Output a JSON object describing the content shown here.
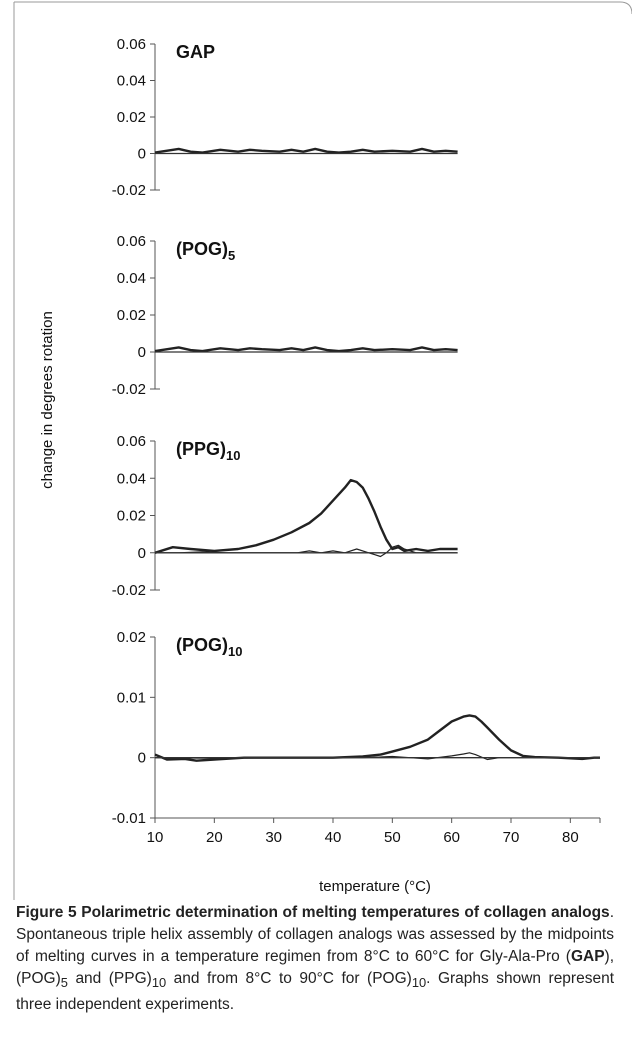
{
  "chart_data": [
    {
      "type": "line",
      "title": "GAP",
      "xlim": [
        10,
        85
      ],
      "ylim": [
        -0.02,
        0.06
      ],
      "yticks": [
        "0.06",
        "0.04",
        "0.02",
        "0",
        "-0.02"
      ],
      "series": [
        {
          "x": [
            10,
            14,
            16,
            18,
            21,
            24,
            26,
            28,
            31,
            33,
            35,
            37,
            39,
            41,
            43,
            45,
            47,
            50,
            53,
            55,
            57,
            59,
            61
          ],
          "y": [
            0.0005,
            0.0025,
            0.001,
            0.0005,
            0.002,
            0.001,
            0.002,
            0.0015,
            0.001,
            0.002,
            0.001,
            0.0025,
            0.001,
            0.0005,
            0.001,
            0.002,
            0.001,
            0.0015,
            0.001,
            0.0025,
            0.001,
            0.0015,
            0.001
          ]
        },
        {
          "x": [
            10,
            61
          ],
          "y": [
            0,
            0
          ]
        }
      ]
    },
    {
      "type": "line",
      "title": "(POG)",
      "title_sub": "5",
      "xlim": [
        10,
        85
      ],
      "ylim": [
        -0.02,
        0.06
      ],
      "yticks": [
        "0.06",
        "0.04",
        "0.02",
        "0",
        "-0.02"
      ],
      "series": [
        {
          "x": [
            10,
            14,
            16,
            18,
            21,
            24,
            26,
            28,
            31,
            33,
            35,
            37,
            39,
            41,
            43,
            45,
            47,
            50,
            53,
            55,
            57,
            59,
            61
          ],
          "y": [
            0.0005,
            0.0025,
            0.001,
            0.0005,
            0.002,
            0.001,
            0.002,
            0.0015,
            0.001,
            0.002,
            0.001,
            0.0025,
            0.001,
            0.0005,
            0.001,
            0.002,
            0.001,
            0.0015,
            0.001,
            0.0025,
            0.001,
            0.0015,
            0.001
          ]
        },
        {
          "x": [
            10,
            61
          ],
          "y": [
            0,
            0
          ]
        }
      ]
    },
    {
      "type": "line",
      "title": "(PPG)",
      "title_sub": "10",
      "xlim": [
        10,
        85
      ],
      "ylim": [
        -0.02,
        0.06
      ],
      "yticks": [
        "0.06",
        "0.04",
        "0.02",
        "0",
        "-0.02"
      ],
      "series": [
        {
          "x": [
            10,
            13,
            16,
            20,
            24,
            27,
            30,
            33,
            36,
            38,
            40,
            42,
            43,
            44,
            45,
            46,
            47,
            48,
            49,
            50,
            51,
            52,
            54,
            56,
            58,
            61
          ],
          "y": [
            0,
            0.003,
            0.002,
            0.001,
            0.002,
            0.004,
            0.007,
            0.011,
            0.016,
            0.021,
            0.028,
            0.035,
            0.039,
            0.038,
            0.035,
            0.029,
            0.022,
            0.014,
            0.007,
            0.002,
            0.003,
            0.001,
            0.002,
            0.001,
            0.002,
            0.002
          ]
        },
        {
          "x": [
            10,
            14,
            18,
            22,
            26,
            30,
            34,
            36,
            38,
            40,
            42,
            44,
            46,
            47,
            48,
            49,
            50,
            51,
            52,
            54,
            56,
            61
          ],
          "y": [
            0,
            0,
            0.0005,
            0,
            0,
            0,
            0,
            0.001,
            0,
            0.001,
            0,
            0.002,
            0,
            -0.001,
            -0.002,
            0,
            0.003,
            0.004,
            0.002,
            0,
            0,
            0
          ]
        },
        {
          "x": [
            10,
            61
          ],
          "y": [
            0,
            0
          ]
        }
      ]
    },
    {
      "type": "line",
      "title": "(POG)",
      "title_sub": "10",
      "xlim": [
        10,
        85
      ],
      "ylim": [
        -0.01,
        0.02
      ],
      "yticks": [
        "0.02",
        "0.01",
        "0",
        "-0.01"
      ],
      "xticks": [
        "10",
        "20",
        "30",
        "40",
        "50",
        "60",
        "70",
        "80"
      ],
      "xlabel": "temperature (°C)",
      "series": [
        {
          "x": [
            10,
            12,
            15,
            17,
            20,
            25,
            30,
            35,
            40,
            45,
            48,
            50,
            53,
            56,
            58,
            60,
            62,
            63,
            64,
            65,
            66,
            68,
            70,
            72,
            74,
            78,
            82,
            84,
            85
          ],
          "y": [
            0.0005,
            -0.0003,
            -0.0002,
            -0.0005,
            -0.0003,
            0,
            0,
            0,
            0,
            0.0002,
            0.0005,
            0.001,
            0.0018,
            0.003,
            0.0045,
            0.006,
            0.0068,
            0.007,
            0.0068,
            0.006,
            0.005,
            0.003,
            0.0012,
            0.0003,
            0.0001,
            0,
            -0.0002,
            0,
            0
          ]
        },
        {
          "x": [
            10,
            20,
            30,
            40,
            45,
            50,
            53,
            56,
            60,
            62,
            63,
            64,
            66,
            68,
            70,
            72,
            74,
            85
          ],
          "y": [
            0,
            -0.0001,
            0,
            0,
            0,
            0.0002,
            0,
            -0.0002,
            0.0003,
            0.0006,
            0.0008,
            0.0005,
            -0.0003,
            0,
            0,
            0,
            0,
            0
          ]
        },
        {
          "x": [
            10,
            85
          ],
          "y": [
            0,
            0
          ]
        }
      ]
    }
  ],
  "ylabel": "change in degrees rotation",
  "caption": {
    "title": "Figure 5 Polarimetric determination of melting temperatures of collagen analogs",
    "body_1": ". Spontaneous triple helix assembly of collagen analogs was assessed by the midpoints of melting curves in a temperature regimen from 8°C to 60°C for Gly-Ala-Pro (",
    "gap": "GAP",
    "body_2": "), (POG)",
    "sub_5": "5",
    "body_3": " and (PPG)",
    "sub_10a": "10",
    "body_4": " and from 8°C to 90°C for (POG)",
    "sub_10b": "10",
    "body_5": ". Graphs shown represent three independent experiments."
  }
}
